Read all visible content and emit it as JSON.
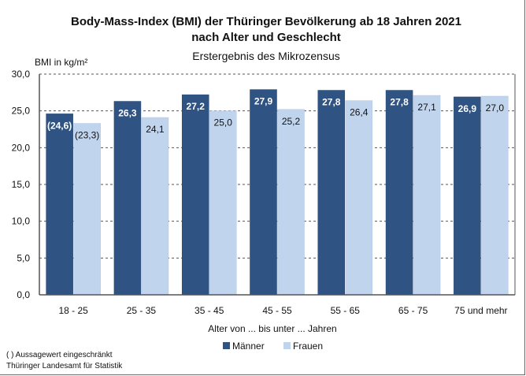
{
  "chart_data": {
    "type": "bar",
    "title": "Body-Mass-Index (BMI) der Thüringer Bevölkerung ab 18 Jahren 2021",
    "title_line2": "nach Alter und Geschlecht",
    "subtitle": "Erstergebnis des Mikrozensus",
    "ylabel": "BMI in kg/m²",
    "xlabel": "Alter von ... bis unter ... Jahren",
    "ylim": [
      0,
      30
    ],
    "yticks": [
      "0,0",
      "5,0",
      "10,0",
      "15,0",
      "20,0",
      "25,0",
      "30,0"
    ],
    "grid": true,
    "legend_placement": "bottom",
    "categories": [
      "18 - 25",
      "25 - 35",
      "35 - 45",
      "45 - 55",
      "55 - 65",
      "65 - 75",
      "75 und mehr"
    ],
    "series": [
      {
        "name": "Männer",
        "color": "#2f5383",
        "values": [
          24.6,
          26.3,
          27.2,
          27.9,
          27.8,
          27.8,
          26.9
        ],
        "labels": [
          "(24,6)",
          "26,3",
          "27,2",
          "27,9",
          "27,8",
          "27,8",
          "26,9"
        ]
      },
      {
        "name": "Frauen",
        "color": "#c0d4ed",
        "values": [
          23.3,
          24.1,
          25.0,
          25.2,
          26.4,
          27.1,
          27.0
        ],
        "labels": [
          "(23,3)",
          "24,1",
          "25,0",
          "25,2",
          "26,4",
          "27,1",
          "27,0"
        ]
      }
    ]
  },
  "footnote": "( )   Aussagewert eingeschränkt",
  "source": "Thüringer Landesamt für Statistik"
}
